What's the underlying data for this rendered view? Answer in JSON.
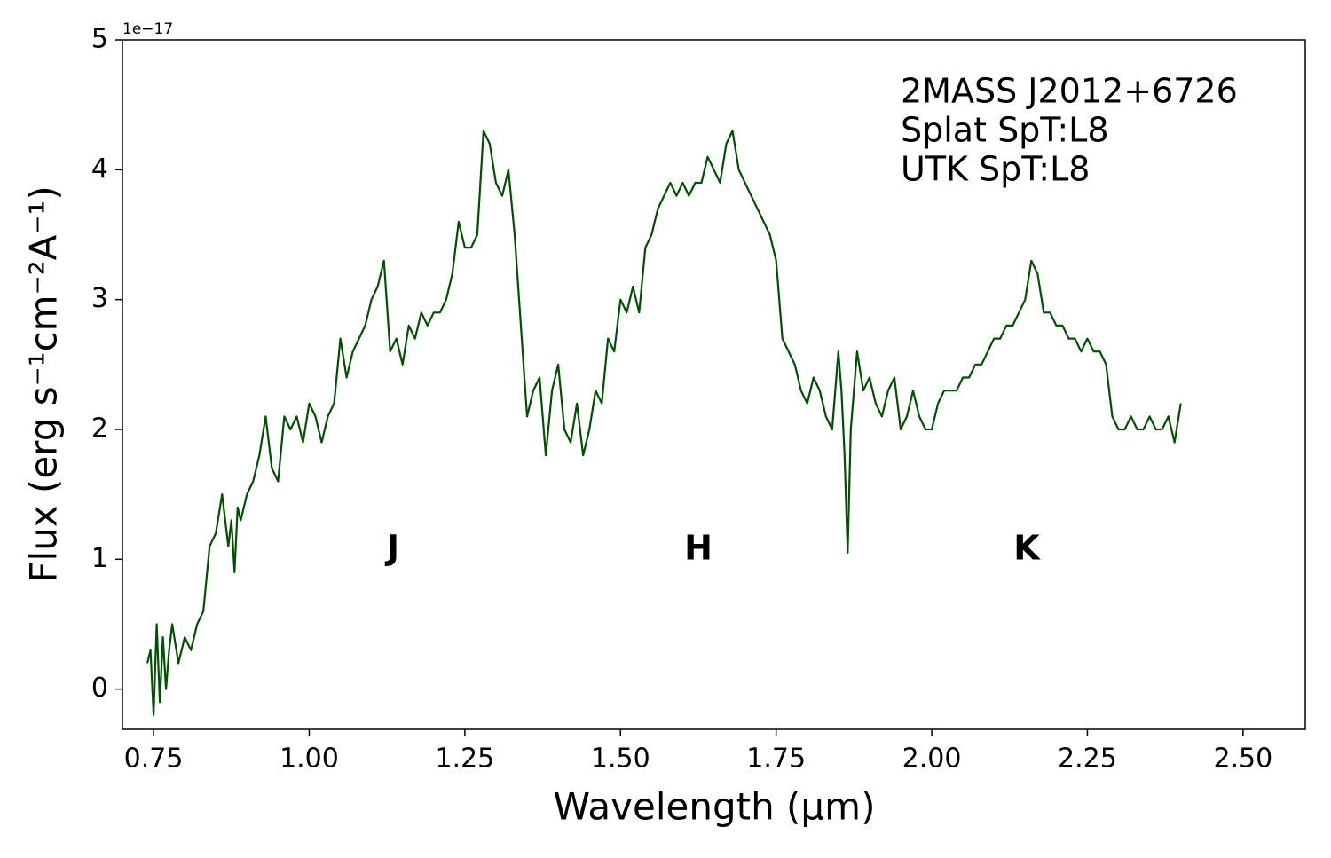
{
  "chart_data": {
    "type": "line",
    "xlabel": "Wavelength (μm)",
    "ylabel": "Flux (erg s⁻¹cm⁻²A⁻¹)",
    "offset_text": "1e−17",
    "annotation": [
      "2MASS J2012+6726",
      "Splat SpT:L8",
      "UTK SpT:L8"
    ],
    "band_labels": [
      "J",
      "H",
      "K"
    ],
    "color": "#005000",
    "x": [
      0.74,
      0.745,
      0.75,
      0.755,
      0.76,
      0.765,
      0.77,
      0.775,
      0.78,
      0.79,
      0.8,
      0.81,
      0.82,
      0.83,
      0.84,
      0.85,
      0.86,
      0.87,
      0.875,
      0.88,
      0.885,
      0.89,
      0.9,
      0.91,
      0.92,
      0.93,
      0.94,
      0.95,
      0.96,
      0.97,
      0.98,
      0.99,
      1.0,
      1.01,
      1.02,
      1.03,
      1.04,
      1.05,
      1.06,
      1.07,
      1.08,
      1.09,
      1.1,
      1.11,
      1.12,
      1.13,
      1.14,
      1.15,
      1.16,
      1.17,
      1.18,
      1.19,
      1.2,
      1.21,
      1.22,
      1.23,
      1.24,
      1.25,
      1.26,
      1.27,
      1.28,
      1.29,
      1.3,
      1.31,
      1.32,
      1.33,
      1.34,
      1.35,
      1.36,
      1.37,
      1.38,
      1.39,
      1.4,
      1.41,
      1.42,
      1.43,
      1.44,
      1.45,
      1.46,
      1.47,
      1.48,
      1.49,
      1.5,
      1.51,
      1.52,
      1.53,
      1.54,
      1.55,
      1.56,
      1.57,
      1.58,
      1.59,
      1.6,
      1.61,
      1.62,
      1.63,
      1.64,
      1.65,
      1.66,
      1.67,
      1.68,
      1.69,
      1.7,
      1.71,
      1.72,
      1.73,
      1.74,
      1.75,
      1.76,
      1.77,
      1.78,
      1.79,
      1.8,
      1.81,
      1.82,
      1.83,
      1.84,
      1.85,
      1.855,
      1.86,
      1.865,
      1.87,
      1.88,
      1.89,
      1.9,
      1.91,
      1.92,
      1.93,
      1.94,
      1.95,
      1.96,
      1.97,
      1.98,
      1.99,
      2.0,
      2.01,
      2.02,
      2.03,
      2.04,
      2.05,
      2.06,
      2.07,
      2.08,
      2.09,
      2.1,
      2.11,
      2.12,
      2.13,
      2.14,
      2.15,
      2.16,
      2.17,
      2.18,
      2.19,
      2.2,
      2.21,
      2.22,
      2.23,
      2.24,
      2.25,
      2.26,
      2.27,
      2.28,
      2.29,
      2.3,
      2.31,
      2.32,
      2.33,
      2.34,
      2.35,
      2.36,
      2.37,
      2.38,
      2.39,
      2.4
    ],
    "values": [
      0.2,
      0.3,
      -0.2,
      0.5,
      -0.1,
      0.4,
      0.0,
      0.3,
      0.5,
      0.2,
      0.4,
      0.3,
      0.5,
      0.6,
      1.1,
      1.2,
      1.5,
      1.1,
      1.3,
      0.9,
      1.4,
      1.3,
      1.5,
      1.6,
      1.8,
      2.1,
      1.7,
      1.6,
      2.1,
      2.0,
      2.1,
      1.9,
      2.2,
      2.1,
      1.9,
      2.1,
      2.2,
      2.7,
      2.4,
      2.6,
      2.7,
      2.8,
      3.0,
      3.1,
      3.3,
      2.6,
      2.7,
      2.5,
      2.8,
      2.7,
      2.9,
      2.8,
      2.9,
      2.9,
      3.0,
      3.2,
      3.6,
      3.4,
      3.4,
      3.5,
      4.3,
      4.2,
      3.9,
      3.8,
      4.0,
      3.5,
      2.8,
      2.1,
      2.3,
      2.4,
      1.8,
      2.3,
      2.5,
      2.0,
      1.9,
      2.2,
      1.8,
      2.0,
      2.3,
      2.2,
      2.7,
      2.6,
      3.0,
      2.9,
      3.1,
      2.9,
      3.4,
      3.5,
      3.7,
      3.8,
      3.9,
      3.8,
      3.9,
      3.8,
      3.9,
      3.9,
      4.1,
      4.0,
      3.9,
      4.2,
      4.3,
      4.0,
      3.9,
      3.8,
      3.7,
      3.6,
      3.5,
      3.3,
      2.7,
      2.6,
      2.5,
      2.3,
      2.2,
      2.4,
      2.3,
      2.1,
      2.0,
      2.6,
      2.3,
      1.8,
      1.05,
      2.0,
      2.6,
      2.3,
      2.4,
      2.2,
      2.1,
      2.3,
      2.4,
      2.0,
      2.1,
      2.3,
      2.1,
      2.0,
      2.0,
      2.2,
      2.3,
      2.3,
      2.3,
      2.4,
      2.4,
      2.5,
      2.5,
      2.6,
      2.7,
      2.7,
      2.8,
      2.8,
      2.9,
      3.0,
      3.3,
      3.2,
      2.9,
      2.9,
      2.8,
      2.8,
      2.7,
      2.7,
      2.6,
      2.7,
      2.6,
      2.6,
      2.5,
      2.1,
      2.0,
      2.0,
      2.1,
      2.0,
      2.0,
      2.1,
      2.0,
      2.0,
      2.1,
      1.9,
      2.2
    ],
    "xlim": [
      0.7,
      2.6
    ],
    "ylim": [
      -0.31,
      5
    ],
    "xticks": [
      0.75,
      {
        "value": 1.0,
        "label": "1.00"
      },
      1.25,
      {
        "value": 1.5,
        "label": "1.50"
      },
      1.75,
      {
        "value": 2.0,
        "label": "2.00"
      },
      2.25,
      {
        "value": 2.5,
        "label": "2.50"
      }
    ],
    "yticks": [
      0,
      1,
      2,
      3,
      4,
      5
    ]
  }
}
